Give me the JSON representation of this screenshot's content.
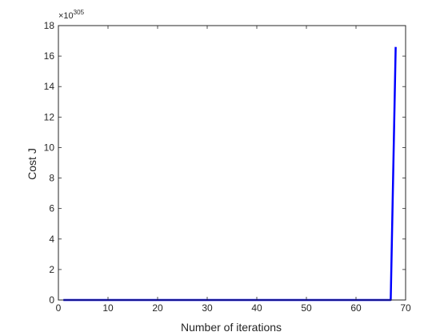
{
  "chart_data": {
    "type": "line",
    "title": "",
    "xlabel": "Number of iterations",
    "ylabel": "Cost J",
    "xlim": [
      0,
      70
    ],
    "ylim": [
      0,
      18
    ],
    "xticks": [
      0,
      10,
      20,
      30,
      40,
      50,
      60,
      70
    ],
    "yticks": [
      0,
      2,
      4,
      6,
      8,
      10,
      12,
      14,
      16,
      18
    ],
    "y_multiplier_base": "×10",
    "y_multiplier_exponent": "305",
    "grid": false,
    "series": [
      {
        "color": "#0000ff",
        "x": [
          1,
          67,
          68
        ],
        "y": [
          0,
          0,
          16.6
        ]
      }
    ]
  }
}
